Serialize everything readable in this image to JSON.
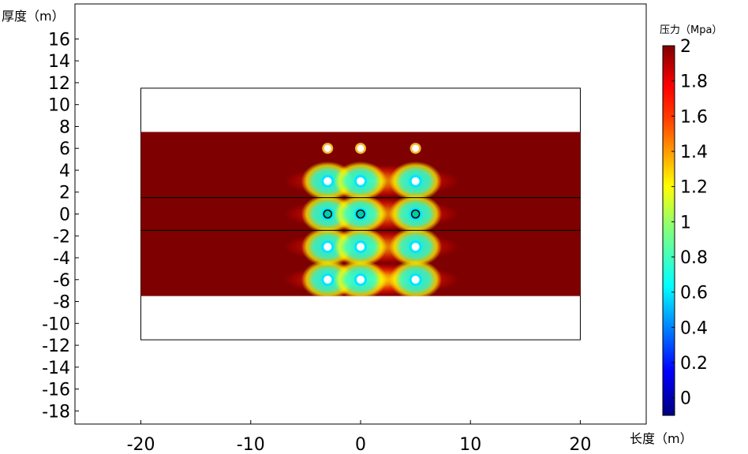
{
  "chart_data": {
    "type": "heatmap",
    "xlabel": "长度（m）",
    "ylabel": "厚度（m）",
    "colorbar_label": "压力（Mpa）",
    "xlim": [
      -26,
      26
    ],
    "ylim": [
      -19.2,
      19.2
    ],
    "x_ticks": [
      -20,
      -10,
      0,
      10,
      20
    ],
    "y_ticks": [
      -18,
      -16,
      -14,
      -12,
      -10,
      -8,
      -6,
      -4,
      -2,
      0,
      2,
      4,
      6,
      8,
      10,
      12,
      14,
      16
    ],
    "colorbar_ticks": [
      0,
      0.2,
      0.4,
      0.6,
      0.8,
      1,
      1.2,
      1.4,
      1.6,
      1.8,
      2
    ],
    "colorbar_range": [
      -0.1,
      2.0
    ],
    "outer_box": {
      "x": [
        -20,
        20
      ],
      "y": [
        -11.5,
        11.5
      ]
    },
    "field_region": {
      "x": [
        -20,
        20
      ],
      "y": [
        -7.5,
        7.5
      ],
      "background_value": 2.0
    },
    "divider_lines_y": [
      1.5,
      -1.5
    ],
    "holes": [
      {
        "x": -3,
        "y": 6,
        "value": 1.5
      },
      {
        "x": 0,
        "y": 6,
        "value": 1.5
      },
      {
        "x": 5,
        "y": 6,
        "value": 1.5
      },
      {
        "x": -3,
        "y": 3,
        "value": 0.6
      },
      {
        "x": 0,
        "y": 3,
        "value": 0.6
      },
      {
        "x": 5,
        "y": 3,
        "value": 0.6
      },
      {
        "x": -3,
        "y": 0,
        "value": 0.5
      },
      {
        "x": 0,
        "y": 0,
        "value": 0.5
      },
      {
        "x": 5,
        "y": 0,
        "value": 0.5
      },
      {
        "x": -3,
        "y": -3,
        "value": 0.6
      },
      {
        "x": 0,
        "y": -3,
        "value": 0.6
      },
      {
        "x": 5,
        "y": -3,
        "value": 0.6
      },
      {
        "x": -3,
        "y": -6,
        "value": 0.6
      },
      {
        "x": 0,
        "y": -6,
        "value": 0.6
      },
      {
        "x": 5,
        "y": -6,
        "value": 0.6
      }
    ],
    "grid": false,
    "colormap": "jet"
  }
}
